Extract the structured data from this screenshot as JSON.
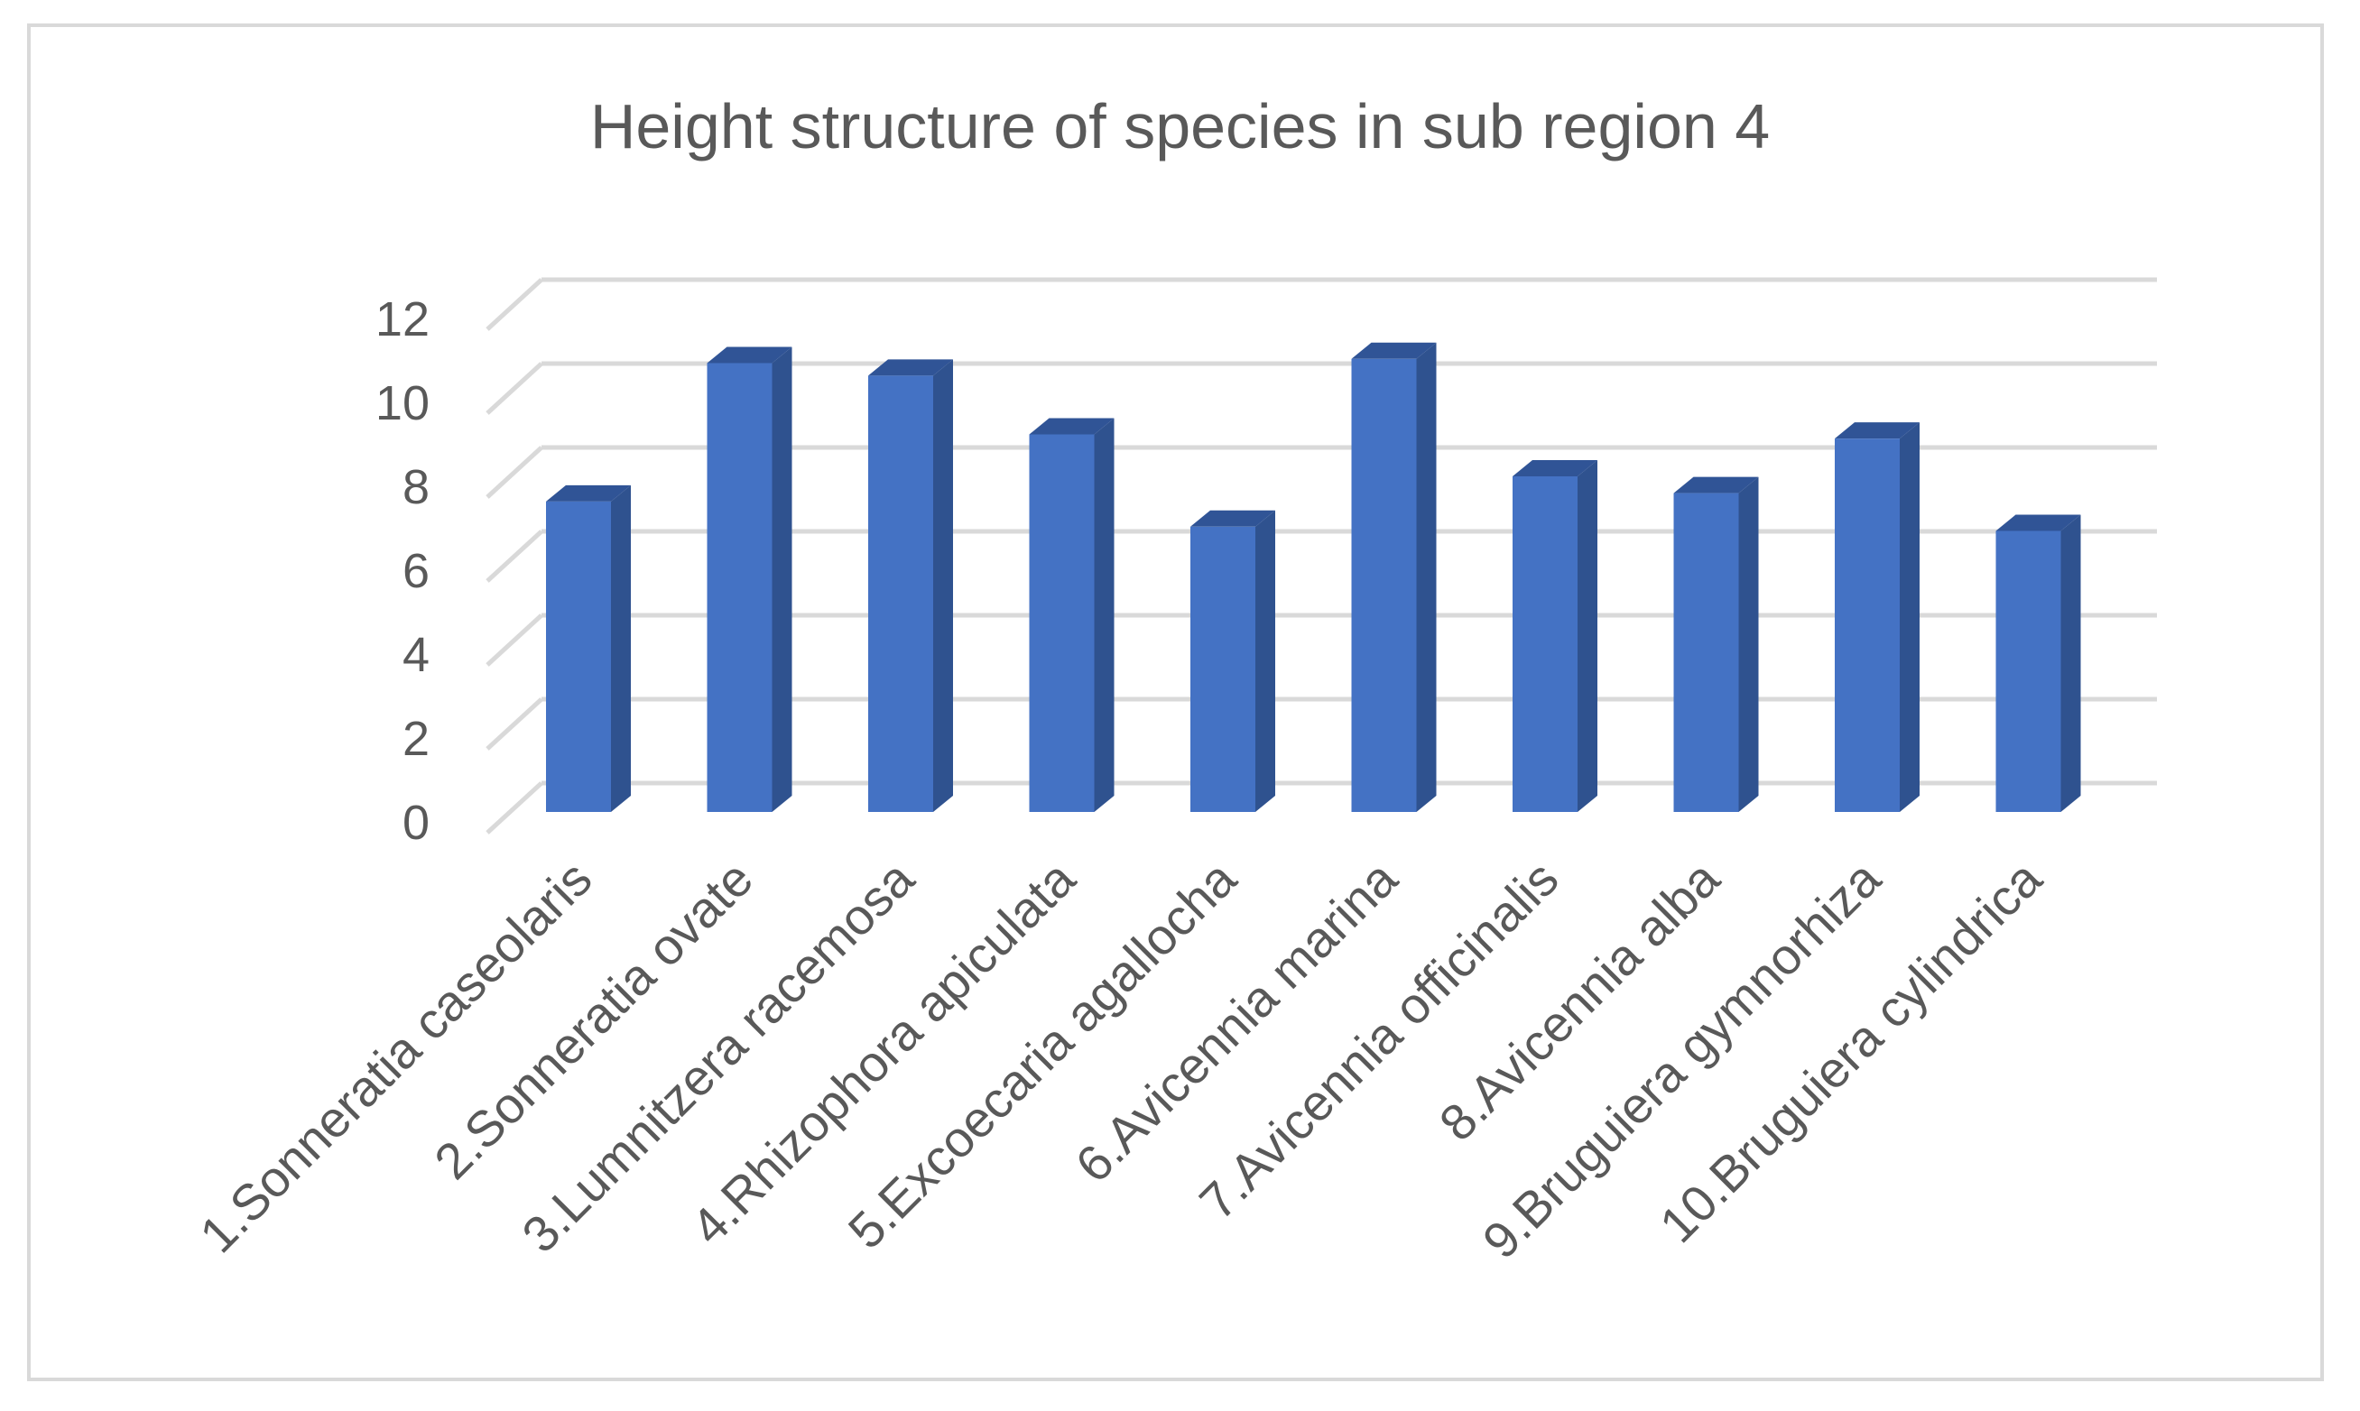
{
  "chart_data": {
    "type": "bar",
    "title": "Height structure of species in sub region 4",
    "xlabel": "",
    "ylabel": "",
    "ylim": [
      0,
      12
    ],
    "yticks": [
      "0",
      "2",
      "4",
      "6",
      "8",
      "10",
      "12"
    ],
    "grid": true,
    "style": "3d-column",
    "colors": {
      "bar_front": "#4472c4",
      "bar_side": "#2f528f",
      "bar_top": "#305496",
      "gridline": "#d9d9d9",
      "text": "#595959"
    },
    "categories": [
      "1.Sonneratia caseolaris",
      "2.Sonneratia ovate",
      "3.Lumnitzera racemosa",
      "4.Rhizophora apiculata",
      "5.Excoecaria agallocha",
      "6.Avicennia marina",
      "7.Avicennia officinalis",
      "8.Avicennia alba",
      "9.Bruguiera gymnorhiza",
      "10.Bruguiera cylindrica"
    ],
    "values": [
      7.4,
      10.7,
      10.4,
      9.0,
      6.8,
      10.8,
      8.0,
      7.6,
      8.9,
      6.7
    ]
  }
}
